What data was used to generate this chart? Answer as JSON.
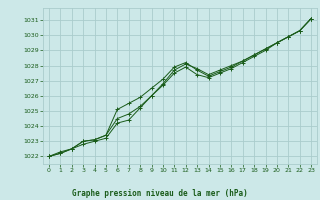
{
  "title": "",
  "xlabel": "Graphe pression niveau de la mer (hPa)",
  "bg_color": "#cce8e8",
  "plot_bg_color": "#cce8e8",
  "grid_color": "#aacccc",
  "line_color": "#1a5c1a",
  "xlim": [
    -0.5,
    23.5
  ],
  "ylim": [
    1021.5,
    1031.8
  ],
  "yticks": [
    1022,
    1023,
    1024,
    1025,
    1026,
    1027,
    1028,
    1029,
    1030,
    1031
  ],
  "xticks": [
    0,
    1,
    2,
    3,
    4,
    5,
    6,
    7,
    8,
    9,
    10,
    11,
    12,
    13,
    14,
    15,
    16,
    17,
    18,
    19,
    20,
    21,
    22,
    23
  ],
  "series1": {
    "x": [
      0,
      1,
      2,
      3,
      4,
      5,
      6,
      7,
      8,
      9,
      10,
      11,
      12,
      13,
      14,
      15,
      16,
      17,
      18,
      19,
      20,
      21,
      22,
      23
    ],
    "y": [
      1022.0,
      1022.3,
      1022.5,
      1022.8,
      1023.0,
      1023.2,
      1024.2,
      1024.4,
      1025.2,
      1026.0,
      1026.8,
      1027.7,
      1028.1,
      1027.8,
      1027.4,
      1027.7,
      1028.0,
      1028.3,
      1028.7,
      1029.1,
      1029.5,
      1029.9,
      1030.3,
      1031.1
    ]
  },
  "series2": {
    "x": [
      0,
      1,
      2,
      3,
      4,
      5,
      6,
      7,
      8,
      9,
      10,
      11,
      12,
      13,
      14,
      15,
      16,
      17,
      18,
      19,
      20,
      21,
      22,
      23
    ],
    "y": [
      1022.0,
      1022.2,
      1022.5,
      1023.0,
      1023.1,
      1023.4,
      1025.1,
      1025.5,
      1025.9,
      1026.5,
      1027.1,
      1027.9,
      1028.2,
      1027.7,
      1027.3,
      1027.6,
      1027.9,
      1028.3,
      1028.7,
      1029.1,
      1029.5,
      1029.9,
      1030.3,
      1031.1
    ]
  },
  "series3": {
    "x": [
      0,
      1,
      2,
      3,
      4,
      5,
      6,
      7,
      8,
      9,
      10,
      11,
      12,
      13,
      14,
      15,
      16,
      17,
      18,
      19,
      20,
      21,
      22,
      23
    ],
    "y": [
      1022.0,
      1022.2,
      1022.5,
      1023.0,
      1023.1,
      1023.4,
      1024.5,
      1024.8,
      1025.3,
      1026.0,
      1026.7,
      1027.5,
      1027.9,
      1027.4,
      1027.2,
      1027.5,
      1027.8,
      1028.2,
      1028.6,
      1029.0,
      1029.5,
      1029.9,
      1030.3,
      1031.1
    ]
  }
}
